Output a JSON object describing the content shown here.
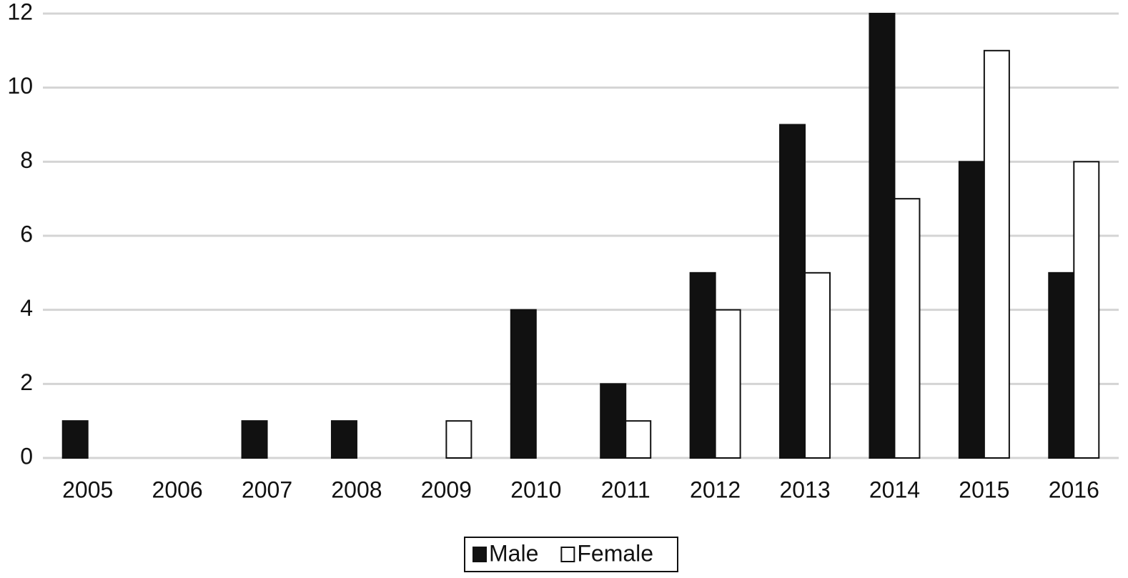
{
  "chart_data": {
    "type": "bar",
    "categories": [
      "2005",
      "2006",
      "2007",
      "2008",
      "2009",
      "2010",
      "2011",
      "2012",
      "2013",
      "2014",
      "2015",
      "2016"
    ],
    "series": [
      {
        "name": "Male",
        "color": "#111111",
        "values": [
          1,
          0,
          1,
          1,
          0,
          4,
          2,
          5,
          9,
          12,
          8,
          5
        ]
      },
      {
        "name": "Female",
        "color": "#ffffff",
        "values": [
          0,
          0,
          0,
          0,
          1,
          0,
          1,
          4,
          5,
          7,
          11,
          8
        ]
      }
    ],
    "ylim": [
      0,
      12
    ],
    "yticks": [
      0,
      2,
      4,
      6,
      8,
      10,
      12
    ],
    "grid": true,
    "legend": "bottom"
  }
}
